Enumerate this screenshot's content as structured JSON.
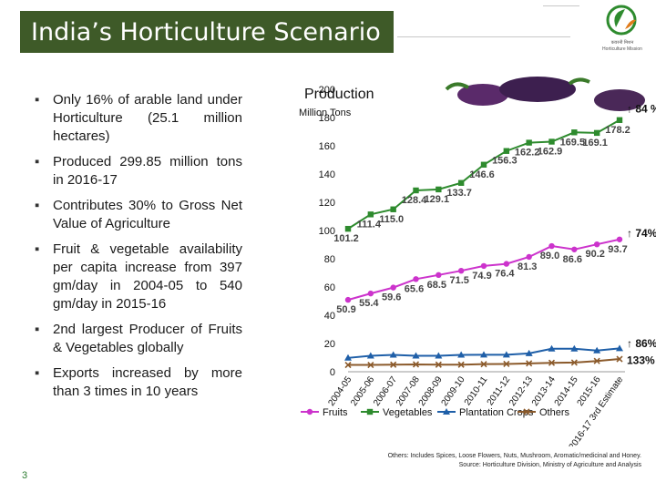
{
  "title": "India’s Horticulture Scenario",
  "logo_text": "कवरनी मिशन\nHorticulture Mission",
  "bullets": [
    "Only 16% of arable land under Horticulture (25.1 million hectares)",
    "Produced 299.85 million tons in 2016-17",
    "Contributes 30% to Gross Net Value of Agriculture",
    "Fruit & vegetable availability per capita increase from 397 gm/day in 2004-05 to 540 gm/day in 2015-16",
    "2nd largest Producer of Fruits & Vegetables globally",
    "Exports increased by more than 3 times in 10 years"
  ],
  "page_number": "3",
  "footnote_lines": [
    "Others: Includes Spices, Loose Flowers, Nuts, Mushroom, Aromatic/medicinal and Honey.",
    "Source: Horticulture Division, Ministry of Agriculture and Analysis"
  ],
  "colors": {
    "title_bg": "#3e5a28",
    "fruits": "#cc33cc",
    "vegetables": "#2e8b2e",
    "plantation": "#1f5fa8",
    "others": "#8b5a2b"
  },
  "chart_data": {
    "type": "line",
    "title": "Production",
    "ylabel": "Million Tons",
    "ylim": [
      0,
      200
    ],
    "yticks": [
      0,
      20,
      40,
      60,
      80,
      100,
      120,
      140,
      160,
      180,
      200
    ],
    "categories": [
      "2004-05",
      "2005-06",
      "2006-07",
      "2007-08",
      "2008-09",
      "2009-10",
      "2010-11",
      "2011-12",
      "2012-13",
      "2013-14",
      "2014-15",
      "2015-16",
      "2016-17 3rd Estimate"
    ],
    "series": [
      {
        "name": "Fruits",
        "values": [
          50.9,
          55.4,
          59.6,
          65.6,
          68.5,
          71.5,
          74.9,
          76.4,
          81.3,
          89.0,
          86.6,
          90.2,
          93.7
        ],
        "labels": [
          "50.9",
          "55.4",
          "59.6",
          "65.6",
          "68.5",
          "71.5",
          "74.9",
          "76.4",
          "81.3",
          "89.0",
          "86.6",
          "90.2",
          "93.7"
        ]
      },
      {
        "name": "Vegetables",
        "values": [
          101.2,
          111.4,
          115.0,
          128.4,
          129.1,
          133.7,
          146.6,
          156.3,
          162.2,
          162.9,
          169.5,
          169.1,
          178.2
        ],
        "labels": [
          "101.2",
          "111.4",
          "115.0",
          "128.4",
          "129.1",
          "133.7",
          "146.6",
          "156.3",
          "162.2",
          "162.9",
          "169.5",
          "169.1",
          "178.2"
        ]
      },
      {
        "name": "Plantation Crops",
        "values": [
          9.8,
          11.3,
          11.9,
          11.3,
          11.3,
          11.9,
          12.0,
          12.0,
          13.0,
          16.3,
          16.3,
          15.0,
          16.5
        ],
        "labels": []
      },
      {
        "name": "Others",
        "values": [
          4.8,
          4.8,
          5.0,
          5.2,
          5.0,
          5.0,
          5.4,
          5.5,
          5.9,
          6.3,
          6.5,
          7.6,
          9.0
        ],
        "labels": []
      }
    ],
    "annotations": [
      "84 %",
      "74%",
      "86%",
      "133%"
    ],
    "legend": [
      "Fruits",
      "Vegetables",
      "Plantation Crops",
      "Others"
    ]
  }
}
